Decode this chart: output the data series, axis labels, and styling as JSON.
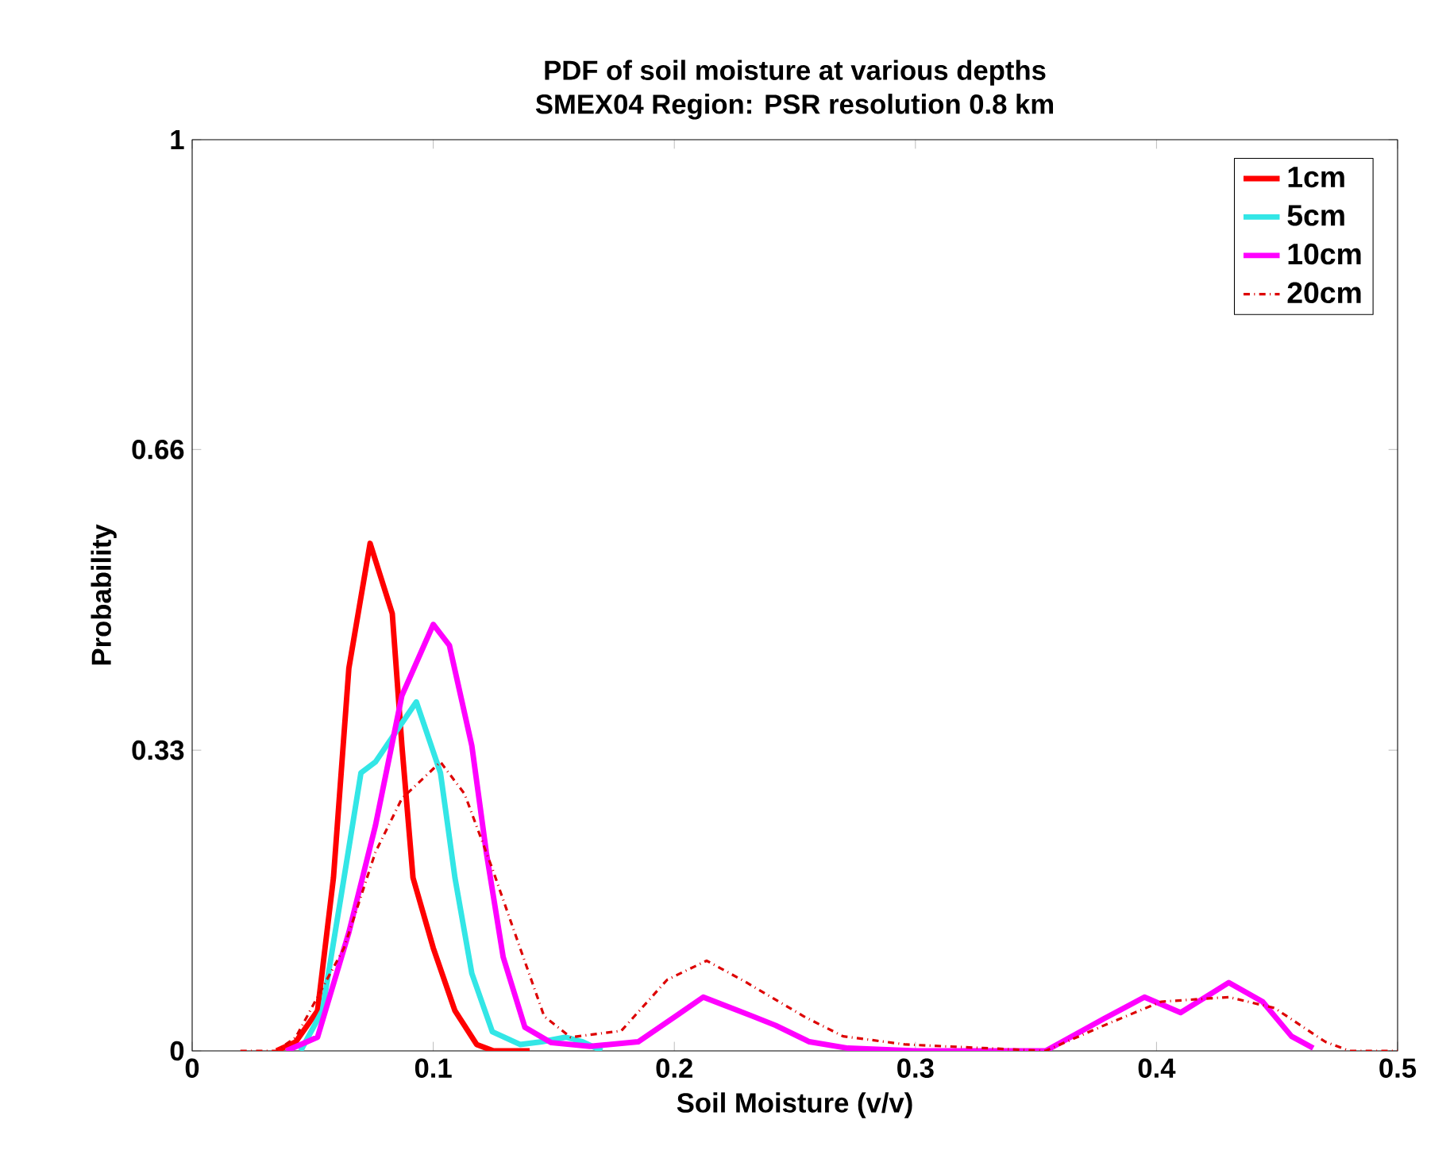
{
  "chart_data": {
    "type": "line",
    "title": "PDF of soil moisture at various depths",
    "subtitle": "SMEX04 Region: PSR resolution 0.8 km",
    "xlabel": "Soil Moisture (v/v)",
    "ylabel": "Probability",
    "xlim": [
      0,
      0.5
    ],
    "ylim": [
      0,
      1
    ],
    "xticks": [
      0,
      0.1,
      0.2,
      0.3,
      0.4,
      0.5
    ],
    "yticks": [
      0,
      0.33,
      0.66,
      1
    ],
    "legend": "top right",
    "marker": "none",
    "series": [
      {
        "name": "1cm",
        "color": "#ff0000",
        "line_style": "solid",
        "x": [
          0.035,
          0.043,
          0.052,
          0.0586,
          0.065,
          0.0738,
          0.083,
          0.087,
          0.0916,
          0.1,
          0.109,
          0.118,
          0.125,
          0.14
        ],
        "values": [
          0,
          0.01,
          0.044,
          0.19,
          0.42,
          0.557,
          0.48,
          0.335,
          0.19,
          0.113,
          0.044,
          0.007,
          0,
          0
        ]
      },
      {
        "name": "5cm",
        "color": "#33e6e6",
        "line_style": "solid",
        "x": [
          0.045,
          0.054,
          0.063,
          0.07,
          0.076,
          0.085,
          0.093,
          0.103,
          0.109,
          0.116,
          0.1245,
          0.136,
          0.145,
          0.155,
          0.162,
          0.17
        ],
        "values": [
          0,
          0.044,
          0.19,
          0.305,
          0.317,
          0.352,
          0.383,
          0.305,
          0.19,
          0.085,
          0.021,
          0.007,
          0.01,
          0.015,
          0.01,
          0
        ]
      },
      {
        "name": "10cm",
        "color": "#ff00ff",
        "line_style": "solid",
        "x": [
          0.039,
          0.052,
          0.065,
          0.076,
          0.087,
          0.1,
          0.1067,
          0.116,
          0.122,
          0.129,
          0.138,
          0.149,
          0.165,
          0.185,
          0.2016,
          0.212,
          0.2325,
          0.242,
          0.256,
          0.272,
          0.3,
          0.354,
          0.378,
          0.395,
          0.41,
          0.43,
          0.444,
          0.456,
          0.465
        ],
        "values": [
          0,
          0.015,
          0.13,
          0.247,
          0.39,
          0.468,
          0.445,
          0.335,
          0.218,
          0.103,
          0.026,
          0.009,
          0.005,
          0.01,
          0.04,
          0.059,
          0.038,
          0.028,
          0.01,
          0.003,
          0,
          0,
          0.035,
          0.059,
          0.042,
          0.075,
          0.054,
          0.016,
          0.003
        ]
      },
      {
        "name": "20cm",
        "color": "#dd0000",
        "line_style": "dashdot",
        "x": [
          0.02,
          0.035,
          0.043,
          0.063,
          0.076,
          0.087,
          0.103,
          0.113,
          0.1245,
          0.136,
          0.146,
          0.157,
          0.178,
          0.197,
          0.2134,
          0.23,
          0.2536,
          0.27,
          0.296,
          0.354,
          0.38,
          0.402,
          0.43,
          0.449,
          0.47,
          0.48,
          0.5
        ],
        "values": [
          0,
          0,
          0.015,
          0.113,
          0.218,
          0.277,
          0.317,
          0.282,
          0.2,
          0.113,
          0.038,
          0.015,
          0.022,
          0.078,
          0.099,
          0.075,
          0.038,
          0.016,
          0.007,
          0,
          0.03,
          0.054,
          0.059,
          0.047,
          0.01,
          0,
          0
        ]
      }
    ]
  }
}
